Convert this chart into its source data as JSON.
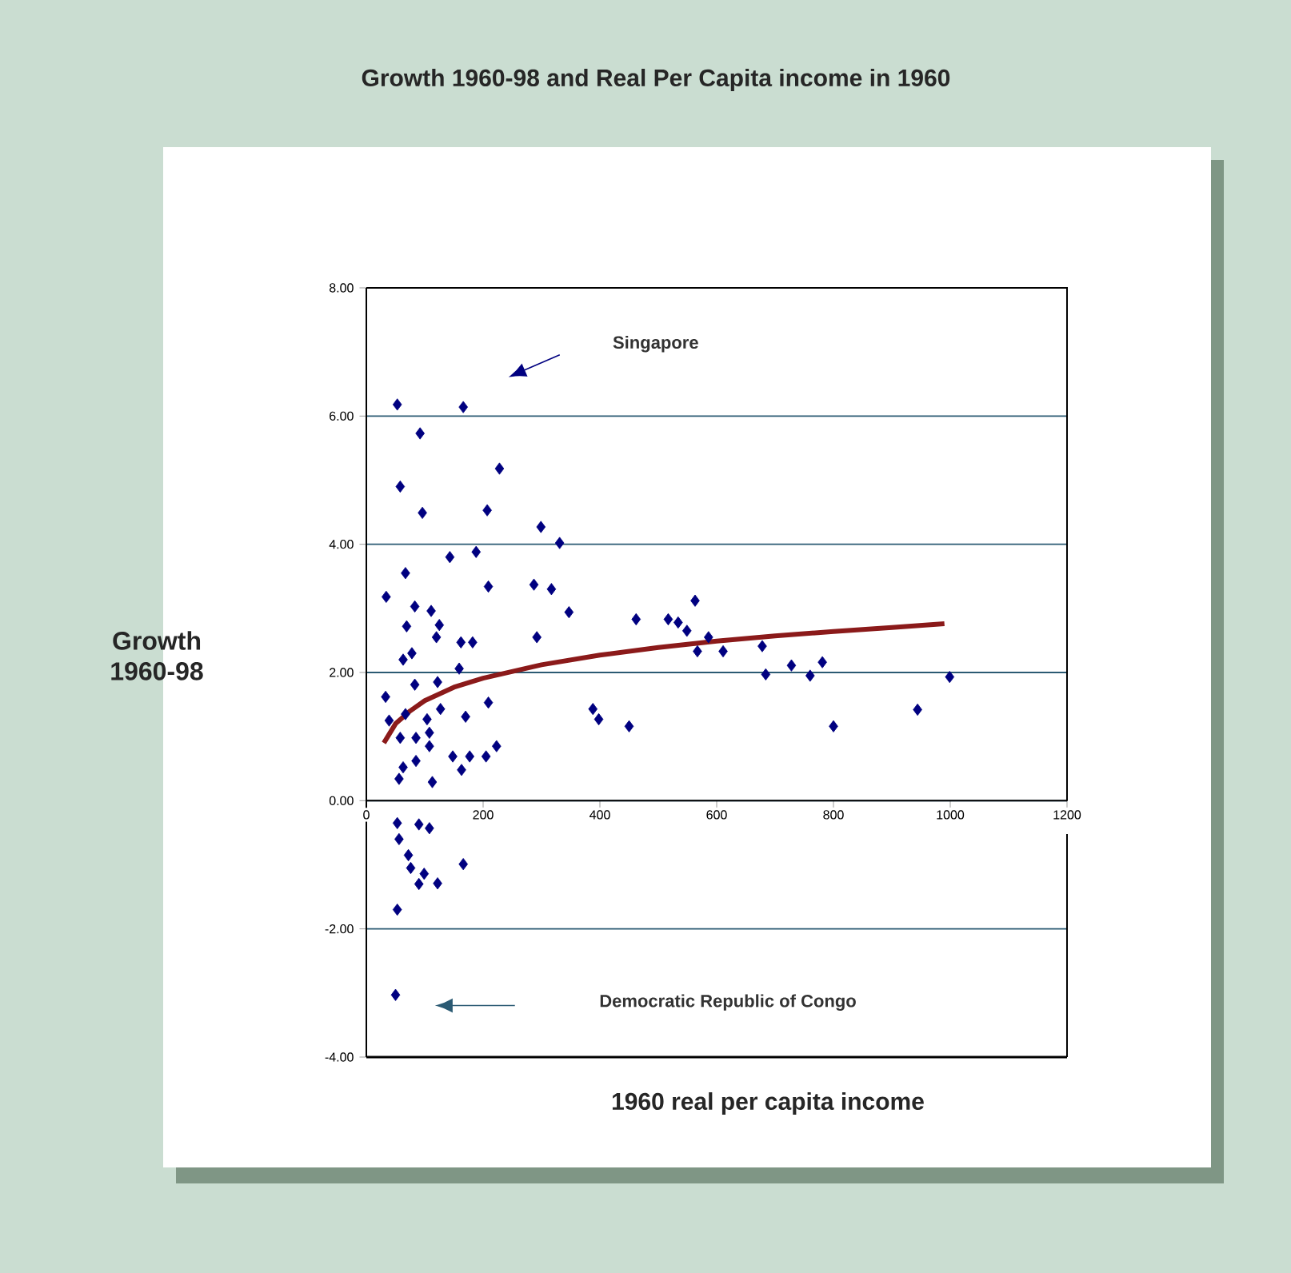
{
  "chart_data": {
    "type": "scatter",
    "title": "Growth 1960-98 and Real Per Capita income in 1960",
    "xlabel": "1960 real per capita income",
    "ylabel": "Growth 1960-98",
    "xlim": [
      0,
      1200
    ],
    "xticks": [
      0,
      200,
      400,
      600,
      800,
      1000,
      1200
    ],
    "ylim": [
      -4,
      8
    ],
    "yticks": [
      {
        "value": -4,
        "label": "-4.00"
      },
      {
        "value": -2,
        "label": "-2.00"
      },
      {
        "value": 0,
        "label": "0.00"
      },
      {
        "value": 2,
        "label": "2.00"
      },
      {
        "value": 4,
        "label": "4.00"
      },
      {
        "value": 6,
        "label": "6.00"
      },
      {
        "value": 8,
        "label": "8.00"
      }
    ],
    "grid": "y",
    "series": [
      {
        "marker": "diamond",
        "color": "#000080",
        "x": [
          53,
          166,
          92,
          228,
          58,
          96,
          207,
          299,
          331,
          143,
          188,
          67,
          34,
          209,
          287,
          317,
          83,
          111,
          347,
          69,
          125,
          120,
          292,
          162,
          182,
          63,
          78,
          159,
          83,
          122,
          33,
          209,
          170,
          39,
          67,
          104,
          127,
          85,
          108,
          58,
          223,
          205,
          148,
          177,
          85,
          63,
          163,
          56,
          113,
          108,
          53,
          90,
          108,
          56,
          72,
          76,
          166,
          99,
          90,
          122,
          53,
          50,
          462,
          517,
          534,
          549,
          563,
          586,
          567,
          611,
          678,
          684,
          728,
          760,
          781,
          999,
          388,
          398,
          450,
          800,
          944
        ],
        "values": [
          6.18,
          6.14,
          5.73,
          5.18,
          4.9,
          4.49,
          4.53,
          4.27,
          4.02,
          3.8,
          3.88,
          3.55,
          3.18,
          3.34,
          3.37,
          3.3,
          3.03,
          2.96,
          2.94,
          2.72,
          2.74,
          2.55,
          2.55,
          2.47,
          2.47,
          2.2,
          2.3,
          2.06,
          1.81,
          1.85,
          1.62,
          1.53,
          1.31,
          1.25,
          1.35,
          1.27,
          1.43,
          0.98,
          1.06,
          0.98,
          0.85,
          0.69,
          0.69,
          0.69,
          0.62,
          0.52,
          0.48,
          0.34,
          0.29,
          0.85,
          -0.35,
          -0.37,
          -0.43,
          -0.6,
          -0.85,
          -1.05,
          -0.99,
          -1.14,
          -1.3,
          -1.29,
          -1.7,
          -3.03,
          2.83,
          2.83,
          2.78,
          2.65,
          3.12,
          2.55,
          2.33,
          2.33,
          2.41,
          1.97,
          2.11,
          1.95,
          2.16,
          1.93,
          1.43,
          1.27,
          1.16,
          1.16,
          1.42
        ]
      },
      {
        "type": "line",
        "marker": "none",
        "color": "#8b1a1a",
        "x": [
          30,
          50,
          75,
          100,
          150,
          200,
          300,
          400,
          500,
          600,
          700,
          800,
          900,
          990
        ],
        "values": [
          0.9,
          1.2,
          1.4,
          1.56,
          1.77,
          1.91,
          2.12,
          2.27,
          2.39,
          2.49,
          2.57,
          2.64,
          2.7,
          2.76
        ]
      }
    ],
    "annotations": [
      "Singapore",
      "Democratic Republic of Congo"
    ]
  }
}
